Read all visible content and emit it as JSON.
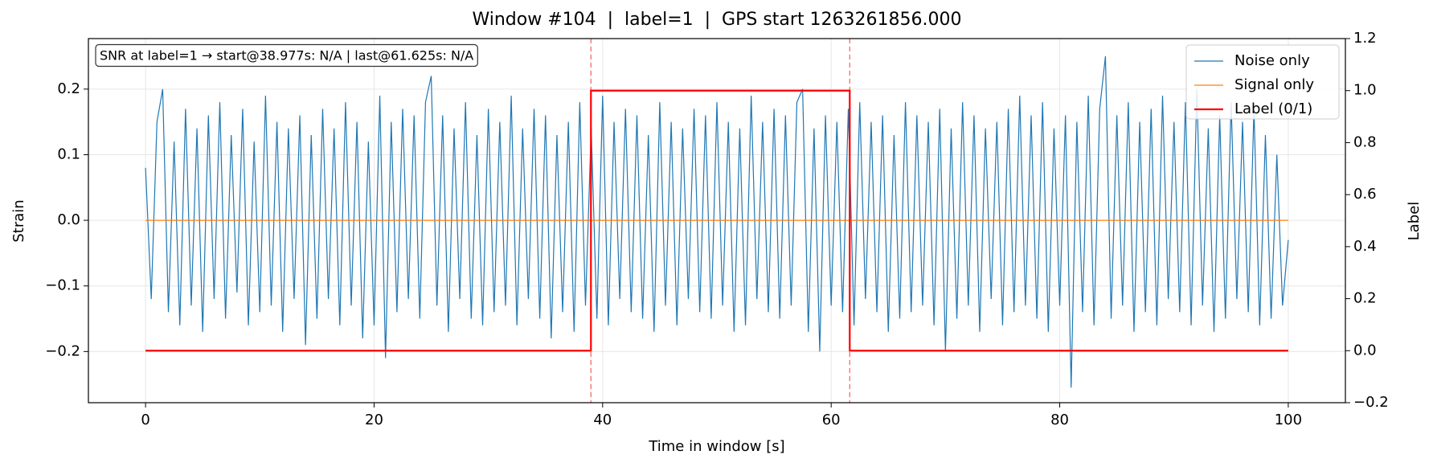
{
  "chart_data": {
    "type": "line",
    "title": "Window #104  |  label=1  |  GPS start 1263261856.000",
    "xlabel": "Time in window [s]",
    "ylabel": "Strain",
    "y2label": "Label",
    "annotation": "SNR at label=1 → start@38.977s: N/A | last@61.625s: N/A",
    "vlines": [
      38.977,
      61.625
    ],
    "vline_color": "#ff0000",
    "xlim": [
      -5,
      105
    ],
    "xticks": [
      0,
      20,
      40,
      60,
      80,
      100
    ],
    "ylim": [
      -0.278,
      0.277
    ],
    "yticks": [
      {
        "value": -0.2,
        "label": "−0.2"
      },
      {
        "value": -0.1,
        "label": "−0.1"
      },
      {
        "value": 0,
        "label": "0.0"
      },
      0.1,
      0.2
    ],
    "y2lim": [
      -0.2,
      1.2
    ],
    "y2ticks": [
      {
        "value": -0.2,
        "label": "−0.2"
      },
      {
        "value": 0,
        "label": "0.0"
      },
      0.2,
      0.4,
      0.6,
      0.8,
      {
        "value": 1,
        "label": "1.0"
      },
      1.2
    ],
    "grid": true,
    "legend": "upper right",
    "series": [
      {
        "name": "Noise only",
        "color": "#1f77b4",
        "x": [
          0,
          0.5,
          1,
          1.5,
          2,
          2.5,
          3,
          3.5,
          4,
          4.5,
          5,
          5.5,
          6,
          6.5,
          7,
          7.5,
          8,
          8.5,
          9,
          9.5,
          10,
          10.5,
          11,
          11.5,
          12,
          12.5,
          13,
          13.5,
          14,
          14.5,
          15,
          15.5,
          16,
          16.5,
          17,
          17.5,
          18,
          18.5,
          19,
          19.5,
          20,
          20.5,
          21,
          21.5,
          22,
          22.5,
          23,
          23.5,
          24,
          24.5,
          25,
          25.5,
          26,
          26.5,
          27,
          27.5,
          28,
          28.5,
          29,
          29.5,
          30,
          30.5,
          31,
          31.5,
          32,
          32.5,
          33,
          33.5,
          34,
          34.5,
          35,
          35.5,
          36,
          36.5,
          37,
          37.5,
          38,
          38.5,
          39,
          39.5,
          40,
          40.5,
          41,
          41.5,
          42,
          42.5,
          43,
          43.5,
          44,
          44.5,
          45,
          45.5,
          46,
          46.5,
          47,
          47.5,
          48,
          48.5,
          49,
          49.5,
          50,
          50.5,
          51,
          51.5,
          52,
          52.5,
          53,
          53.5,
          54,
          54.5,
          55,
          55.5,
          56,
          56.5,
          57,
          57.5,
          58,
          58.5,
          59,
          59.5,
          60,
          60.5,
          61,
          61.5,
          62,
          62.5,
          63,
          63.5,
          64,
          64.5,
          65,
          65.5,
          66,
          66.5,
          67,
          67.5,
          68,
          68.5,
          69,
          69.5,
          70,
          70.5,
          71,
          71.5,
          72,
          72.5,
          73,
          73.5,
          74,
          74.5,
          75,
          75.5,
          76,
          76.5,
          77,
          77.5,
          78,
          78.5,
          79,
          79.5,
          80,
          80.5,
          81,
          81.5,
          82,
          82.5,
          83,
          83.5,
          84,
          84.5,
          85,
          85.5,
          86,
          86.5,
          87,
          87.5,
          88,
          88.5,
          89,
          89.5,
          90,
          90.5,
          91,
          91.5,
          92,
          92.5,
          93,
          93.5,
          94,
          94.5,
          95,
          95.5,
          96,
          96.5,
          97,
          97.5,
          98,
          98.5,
          99,
          99.5,
          100
        ],
        "values": [
          0.08,
          -0.12,
          0.15,
          0.2,
          -0.14,
          0.12,
          -0.16,
          0.17,
          -0.13,
          0.14,
          -0.17,
          0.16,
          -0.12,
          0.18,
          -0.15,
          0.13,
          -0.11,
          0.17,
          -0.16,
          0.12,
          -0.14,
          0.19,
          -0.13,
          0.15,
          -0.17,
          0.14,
          -0.12,
          0.16,
          -0.19,
          0.13,
          -0.15,
          0.17,
          -0.12,
          0.14,
          -0.16,
          0.18,
          -0.13,
          0.15,
          -0.18,
          0.12,
          -0.16,
          0.19,
          -0.21,
          0.15,
          -0.14,
          0.17,
          -0.12,
          0.16,
          -0.15,
          0.18,
          0.22,
          -0.13,
          0.16,
          -0.17,
          0.14,
          -0.12,
          0.18,
          -0.15,
          0.13,
          -0.16,
          0.17,
          -0.14,
          0.15,
          -0.13,
          0.19,
          -0.16,
          0.14,
          -0.12,
          0.17,
          -0.15,
          0.16,
          -0.18,
          0.13,
          -0.14,
          0.15,
          -0.17,
          0.18,
          -0.13,
          0.14,
          -0.15,
          0.19,
          -0.16,
          0.15,
          -0.12,
          0.17,
          -0.14,
          0.16,
          -0.15,
          0.13,
          -0.17,
          0.18,
          -0.13,
          0.15,
          -0.16,
          0.14,
          -0.12,
          0.17,
          -0.14,
          0.16,
          -0.15,
          0.18,
          -0.13,
          0.15,
          -0.17,
          0.14,
          -0.16,
          0.19,
          -0.12,
          0.15,
          -0.14,
          0.17,
          -0.15,
          0.16,
          -0.13,
          0.18,
          0.2,
          -0.17,
          0.14,
          -0.2,
          0.16,
          -0.13,
          0.15,
          -0.14,
          0.17,
          -0.16,
          0.18,
          -0.12,
          0.15,
          -0.14,
          0.16,
          -0.17,
          0.13,
          -0.15,
          0.18,
          -0.14,
          0.16,
          -0.13,
          0.15,
          -0.16,
          0.17,
          -0.2,
          0.14,
          -0.15,
          0.18,
          -0.13,
          0.16,
          -0.17,
          0.14,
          -0.12,
          0.15,
          -0.16,
          0.17,
          -0.14,
          0.19,
          -0.13,
          0.16,
          -0.15,
          0.18,
          -0.17,
          0.14,
          -0.13,
          0.16,
          -0.255,
          0.15,
          -0.14,
          0.19,
          -0.16,
          0.17,
          0.25,
          -0.15,
          0.16,
          -0.13,
          0.18,
          -0.17,
          0.15,
          -0.14,
          0.17,
          -0.16,
          0.19,
          -0.12,
          0.15,
          -0.14,
          0.18,
          -0.16,
          0.2,
          -0.13,
          0.14,
          -0.17,
          0.16,
          -0.15,
          0.18,
          -0.12,
          0.15,
          -0.14,
          0.17,
          -0.16,
          0.13,
          -0.15,
          0.1,
          -0.13,
          -0.03
        ]
      },
      {
        "name": "Signal only",
        "color": "#ff7f0e",
        "x": [
          0,
          100
        ],
        "values": [
          0,
          0
        ]
      },
      {
        "name": "Label (0/1)",
        "color": "#ff0000",
        "axis": "y2",
        "x": [
          0,
          38.977,
          38.977,
          61.625,
          61.625,
          100
        ],
        "values": [
          0,
          0,
          1,
          1,
          0,
          0
        ]
      }
    ]
  }
}
